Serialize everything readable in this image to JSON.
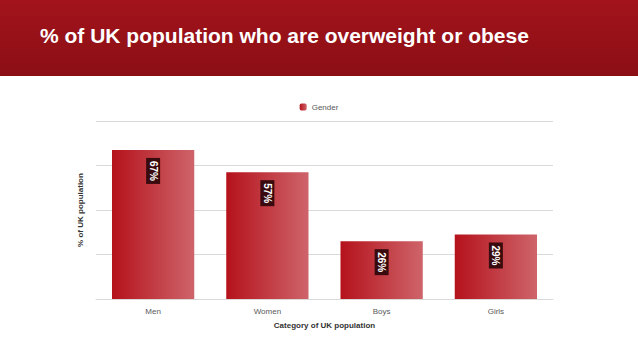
{
  "chart_data": {
    "type": "bar",
    "title": "% of UK population who are overweight or obese",
    "x_label": "Category of UK population",
    "y_label": "% of UK population",
    "categories": [
      "Men",
      "Women",
      "Boys",
      "Girls"
    ],
    "series": [
      {
        "name": "Gender",
        "color": "#b5121b",
        "values": [
          67,
          57,
          26,
          29
        ],
        "value_labels": [
          "67%",
          "57%",
          "26%",
          "29%"
        ]
      }
    ],
    "ylim": [
      0,
      80
    ],
    "yticks": [
      0,
      20,
      40,
      60,
      80
    ],
    "grid": true,
    "legend": "top",
    "data_labels": true,
    "tick_labels": "x"
  }
}
